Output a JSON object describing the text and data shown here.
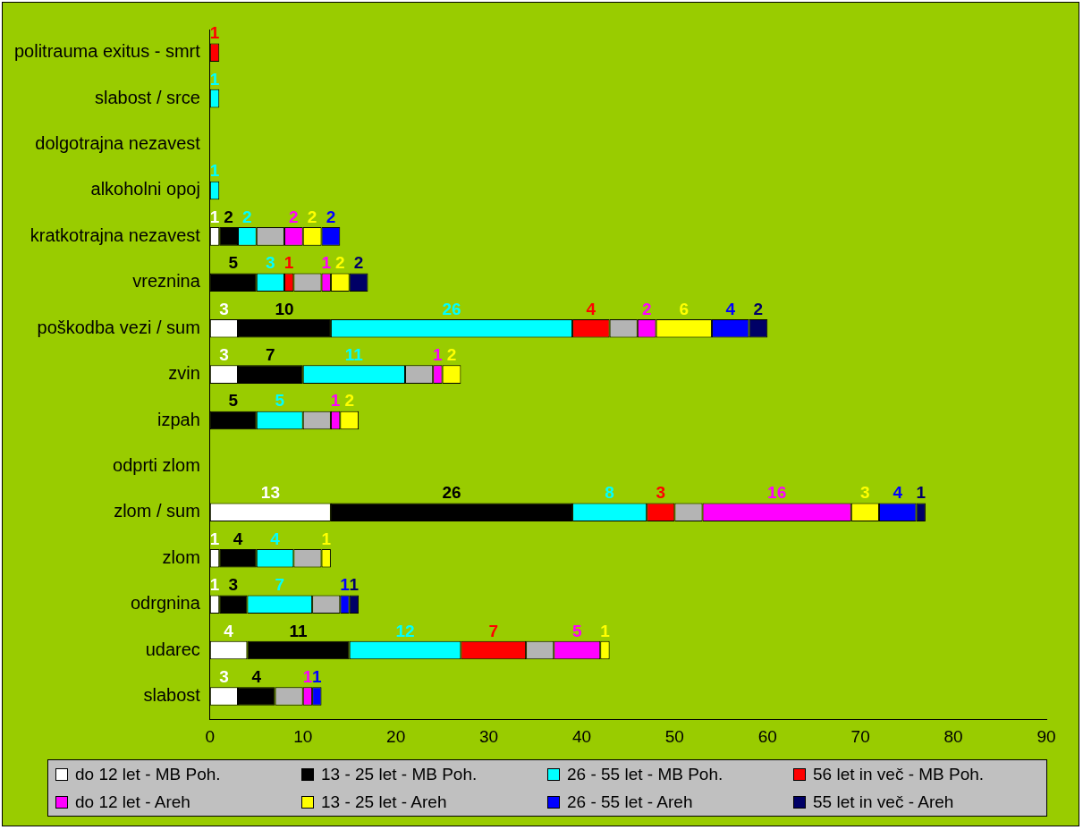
{
  "chart_data": {
    "type": "bar",
    "orientation": "horizontal",
    "stacked": true,
    "categories": [
      "politrauma exitus - smrt",
      "slabost / srce",
      "dolgotrajna nezavest",
      "alkoholni opoj",
      "kratkotrajna nezavest",
      "vreznina",
      "poškodba vezi / sum",
      "zvin",
      "izpah",
      "odprti zlom",
      "zlom / sum",
      "zlom",
      "odrgnina",
      "udarec",
      "slabost"
    ],
    "series": [
      {
        "name": "do 12 let - MB Poh.",
        "color": "#ffffff",
        "values": [
          null,
          null,
          null,
          null,
          1,
          null,
          3,
          3,
          null,
          null,
          13,
          1,
          1,
          4,
          3
        ],
        "value_labels": [
          null,
          null,
          null,
          null,
          "1",
          null,
          "3",
          "3",
          null,
          null,
          "13",
          "1",
          "1",
          "4",
          "3"
        ]
      },
      {
        "name": "13 - 25 let - MB Poh.",
        "color": "#000000",
        "values": [
          null,
          null,
          null,
          null,
          2,
          5,
          10,
          7,
          5,
          null,
          26,
          4,
          3,
          11,
          4
        ],
        "value_labels": [
          null,
          null,
          null,
          null,
          "2",
          "5",
          "10",
          "7",
          "5",
          null,
          "26",
          "4",
          "3",
          "11",
          "4"
        ]
      },
      {
        "name": "26 - 55 let - MB Poh.",
        "color": "#00ffff",
        "values": [
          null,
          1,
          null,
          1,
          2,
          3,
          26,
          11,
          5,
          null,
          8,
          4,
          7,
          12,
          null
        ],
        "value_labels": [
          null,
          "1",
          null,
          "1",
          "2",
          "3",
          "26",
          "11",
          "5",
          null,
          "8",
          "4",
          "7",
          "12",
          null
        ]
      },
      {
        "name": "56 let in več - MB Poh.",
        "color": "#ff0000",
        "values": [
          1,
          null,
          null,
          null,
          null,
          1,
          4,
          null,
          null,
          null,
          3,
          null,
          null,
          7,
          null
        ],
        "value_labels": [
          "1",
          null,
          null,
          null,
          null,
          "1",
          "4",
          null,
          null,
          null,
          "3",
          null,
          null,
          "7",
          null
        ]
      },
      {
        "color": "#b4b4b4",
        "values": [
          null,
          null,
          null,
          null,
          3,
          3,
          3,
          3,
          3,
          null,
          3,
          3,
          3,
          3,
          3
        ]
      },
      {
        "name": "do 12 let - Areh",
        "color": "#ff00ff",
        "values": [
          null,
          null,
          null,
          null,
          2,
          1,
          2,
          1,
          1,
          null,
          16,
          null,
          null,
          5,
          1
        ],
        "value_labels": [
          null,
          null,
          null,
          null,
          "2",
          "1",
          "2",
          "1",
          "1",
          null,
          "16",
          null,
          null,
          "5",
          "1"
        ]
      },
      {
        "name": "13 - 25 let - Areh",
        "color": "#ffff00",
        "values": [
          null,
          null,
          null,
          null,
          2,
          2,
          6,
          2,
          2,
          null,
          3,
          1,
          null,
          1,
          null
        ],
        "value_labels": [
          null,
          null,
          null,
          null,
          "2",
          "2",
          "6",
          "2",
          "2",
          null,
          "3",
          "1",
          null,
          "1",
          null
        ]
      },
      {
        "name": "26 - 55 let - Areh",
        "color": "#0000ff",
        "values": [
          null,
          null,
          null,
          null,
          2,
          null,
          4,
          null,
          null,
          null,
          4,
          null,
          1,
          null,
          1
        ],
        "value_labels": [
          null,
          null,
          null,
          null,
          "2",
          null,
          "4",
          null,
          null,
          null,
          "4",
          null,
          "1",
          null,
          "1"
        ]
      },
      {
        "name": "55 let in več - Areh",
        "color": "#000066",
        "values": [
          null,
          null,
          null,
          null,
          null,
          2,
          2,
          null,
          null,
          null,
          1,
          null,
          1,
          null,
          null
        ],
        "value_labels": [
          null,
          null,
          null,
          null,
          null,
          "2",
          "2",
          null,
          null,
          null,
          "1",
          null,
          "1",
          null,
          null
        ]
      }
    ],
    "xlim": [
      0,
      90
    ],
    "xticks": [
      0,
      10,
      20,
      30,
      40,
      50,
      60,
      70,
      80,
      90
    ],
    "grid": false,
    "legend": "bottom"
  }
}
